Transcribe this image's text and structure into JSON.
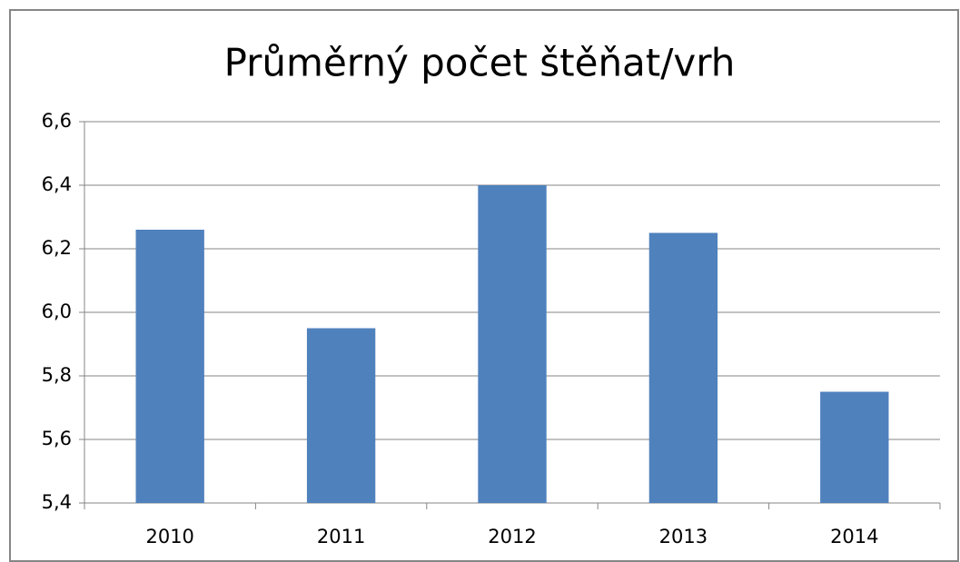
{
  "chart_data": {
    "type": "bar",
    "title": "Průměrný počet štěňat/vrh",
    "categories": [
      "2010",
      "2011",
      "2012",
      "2013",
      "2014"
    ],
    "values": [
      6.26,
      5.95,
      6.4,
      6.25,
      5.75
    ],
    "color": "#4f81bd",
    "ylim": [
      5.4,
      6.6
    ],
    "yticks": [
      {
        "value": 5.4,
        "label": "5,4"
      },
      {
        "value": 5.6,
        "label": "5,6"
      },
      {
        "value": 5.8,
        "label": "5,8"
      },
      {
        "value": 6.0,
        "label": "6,0"
      },
      {
        "value": 6.2,
        "label": "6,2"
      },
      {
        "value": 6.4,
        "label": "6,4"
      },
      {
        "value": 6.6,
        "label": "6,6"
      }
    ],
    "grid": true
  }
}
